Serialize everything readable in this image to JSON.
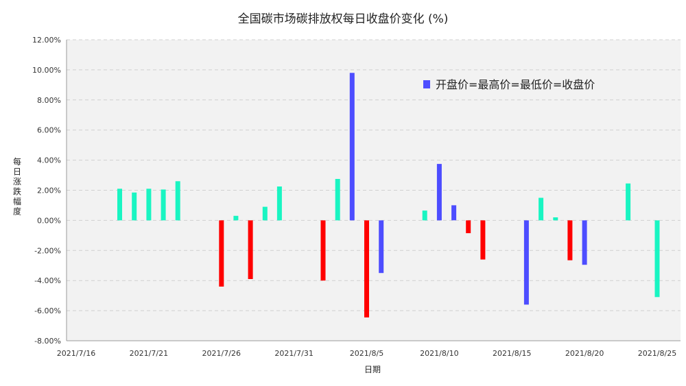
{
  "chart_data": {
    "type": "bar",
    "title": "全国碳市场碳排放权每日收盘价变化 (%)",
    "xlabel": "日期",
    "ylabel": "每日涨跌幅度",
    "ylim": [
      -8,
      12
    ],
    "y_ticks": [
      "-8.00%",
      "-6.00%",
      "-4.00%",
      "-2.00%",
      "0.00%",
      "2.00%",
      "4.00%",
      "6.00%",
      "8.00%",
      "10.00%",
      "12.00%"
    ],
    "x_range": [
      "2021-07-16",
      "2021-08-25"
    ],
    "x_ticks": [
      "2021/7/16",
      "2021/7/21",
      "2021/7/26",
      "2021/7/31",
      "2021/8/5",
      "2021/8/10",
      "2021/8/15",
      "2021/8/20",
      "2021/8/25"
    ],
    "grid": true,
    "legend": {
      "label": "开盘价=最高价=最低价=收盘价",
      "position": "top-right",
      "color": "#4d4dff"
    },
    "colors": {
      "up": "#19f5c2",
      "down": "#ff0000",
      "flat": "#4d4dff",
      "plot_bg": "#f2f2f2",
      "grid": "#d0d0d0"
    },
    "bars": [
      {
        "date": "2021-07-19",
        "value": 2.1,
        "kind": "up"
      },
      {
        "date": "2021-07-20",
        "value": 1.85,
        "kind": "up"
      },
      {
        "date": "2021-07-21",
        "value": 2.1,
        "kind": "up"
      },
      {
        "date": "2021-07-22",
        "value": 2.05,
        "kind": "up"
      },
      {
        "date": "2021-07-23",
        "value": 2.6,
        "kind": "up"
      },
      {
        "date": "2021-07-26",
        "value": -4.4,
        "kind": "down"
      },
      {
        "date": "2021-07-27",
        "value": 0.3,
        "kind": "up"
      },
      {
        "date": "2021-07-28",
        "value": -3.9,
        "kind": "down"
      },
      {
        "date": "2021-07-29",
        "value": 0.9,
        "kind": "up"
      },
      {
        "date": "2021-07-30",
        "value": 2.25,
        "kind": "up"
      },
      {
        "date": "2021-08-02",
        "value": -4.0,
        "kind": "down"
      },
      {
        "date": "2021-08-03",
        "value": 2.75,
        "kind": "up"
      },
      {
        "date": "2021-08-04",
        "value": 9.8,
        "kind": "flat"
      },
      {
        "date": "2021-08-05",
        "value": -6.45,
        "kind": "down"
      },
      {
        "date": "2021-08-06",
        "value": -3.5,
        "kind": "flat"
      },
      {
        "date": "2021-08-09",
        "value": 0.65,
        "kind": "up"
      },
      {
        "date": "2021-08-10",
        "value": 3.75,
        "kind": "flat"
      },
      {
        "date": "2021-08-11",
        "value": 1.0,
        "kind": "flat"
      },
      {
        "date": "2021-08-12",
        "value": -0.85,
        "kind": "down"
      },
      {
        "date": "2021-08-13",
        "value": -2.6,
        "kind": "down"
      },
      {
        "date": "2021-08-16",
        "value": -5.6,
        "kind": "flat"
      },
      {
        "date": "2021-08-17",
        "value": 1.5,
        "kind": "up"
      },
      {
        "date": "2021-08-18",
        "value": 0.2,
        "kind": "up"
      },
      {
        "date": "2021-08-19",
        "value": -2.65,
        "kind": "down"
      },
      {
        "date": "2021-08-20",
        "value": -2.95,
        "kind": "flat"
      },
      {
        "date": "2021-08-23",
        "value": 2.45,
        "kind": "up"
      },
      {
        "date": "2021-08-25",
        "value": -5.1,
        "kind": "up"
      }
    ]
  }
}
